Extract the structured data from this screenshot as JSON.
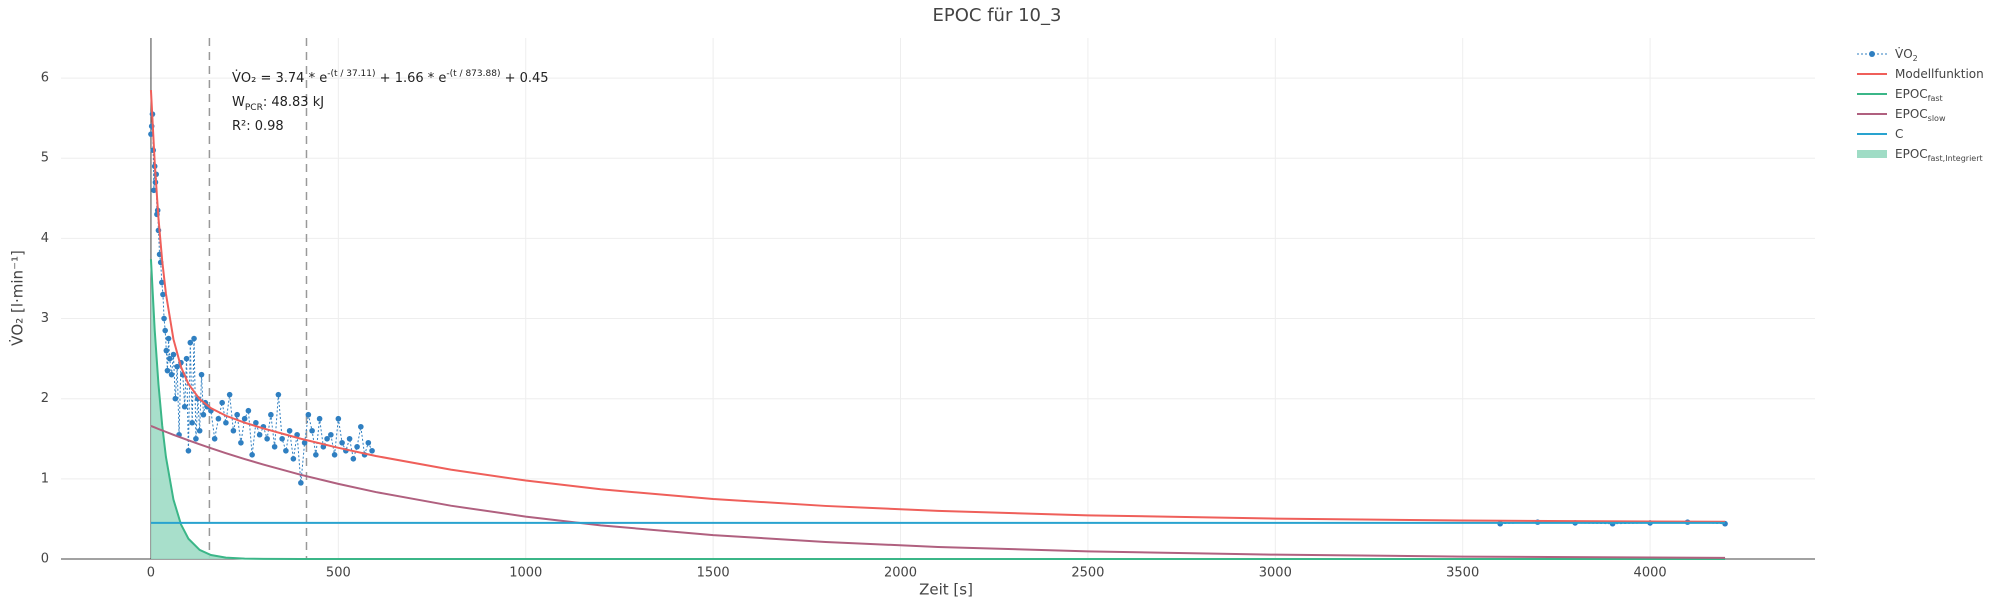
{
  "chart_data": {
    "type": "line",
    "title": "EPOC für 10_3",
    "x_label": "Zeit [s]",
    "y_label": "V̇O₂ [l·min⁻¹]",
    "xlim": [
      -240,
      4440
    ],
    "ylim": [
      0,
      6.5
    ],
    "xticks": [
      0,
      500,
      1000,
      1500,
      2000,
      2500,
      3000,
      3500,
      4000
    ],
    "yticks": [
      0,
      1,
      2,
      3,
      4,
      5,
      6
    ],
    "grid": true,
    "legend": "outside-right",
    "vlines": [
      156,
      415
    ],
    "annotations": [
      [
        {
          "text": "V̇O₂ = 3.74 * e"
        },
        {
          "sup": "-(t / 37.11)"
        },
        {
          "text": " + 1.66 * e"
        },
        {
          "sup": "-(t / 873.88)"
        },
        {
          "text": " + 0.45"
        }
      ],
      [
        {
          "text": "W"
        },
        {
          "sub": "PCR"
        },
        {
          "text": ": 48.83 kJ"
        }
      ],
      [
        {
          "text": "R²: 0.98"
        }
      ]
    ],
    "series": [
      {
        "name": "V̇O",
        "subscript": "2",
        "color": "#2f7fc1",
        "mode": "lines+markers",
        "dash": "dot",
        "x": [
          0,
          2,
          4,
          6,
          8,
          10,
          12,
          14,
          16,
          18,
          20,
          23,
          26,
          29,
          32,
          35,
          38,
          41,
          44,
          47,
          50,
          55,
          60,
          65,
          70,
          75,
          80,
          85,
          90,
          95,
          100,
          105,
          110,
          115,
          120,
          125,
          130,
          135,
          140,
          145,
          150,
          160,
          170,
          180,
          190,
          200,
          210,
          220,
          230,
          240,
          250,
          260,
          270,
          280,
          290,
          300,
          310,
          320,
          330,
          340,
          350,
          360,
          370,
          380,
          390,
          400,
          410,
          420,
          430,
          440,
          450,
          460,
          470,
          480,
          490,
          500,
          510,
          520,
          530,
          540,
          550,
          560,
          570,
          580,
          590,
          2000,
          3600,
          3700,
          3800,
          3900,
          4000,
          4100,
          4200
        ],
        "values": [
          5.3,
          5.4,
          5.55,
          5.1,
          4.6,
          4.9,
          4.7,
          4.8,
          4.3,
          4.35,
          4.1,
          3.8,
          3.7,
          3.45,
          3.3,
          3.0,
          2.85,
          2.6,
          2.35,
          2.75,
          2.5,
          2.3,
          2.55,
          2.0,
          2.4,
          1.55,
          2.45,
          2.3,
          1.9,
          2.5,
          1.35,
          2.7,
          1.7,
          2.75,
          1.5,
          2.0,
          1.6,
          2.3,
          1.8,
          1.95,
          1.9,
          1.85,
          1.5,
          1.75,
          1.95,
          1.7,
          2.05,
          1.6,
          1.8,
          1.45,
          1.75,
          1.85,
          1.3,
          1.7,
          1.55,
          1.65,
          1.5,
          1.8,
          1.4,
          2.05,
          1.5,
          1.35,
          1.6,
          1.25,
          1.55,
          0.95,
          1.45,
          1.8,
          1.6,
          1.3,
          1.75,
          1.4,
          1.5,
          1.55,
          1.3,
          1.75,
          1.45,
          1.35,
          1.5,
          1.25,
          1.4,
          1.65,
          1.3,
          1.45,
          1.35,
          null,
          0.44,
          0.46,
          0.45,
          0.44,
          0.45,
          0.46,
          0.44
        ]
      },
      {
        "name": "Modellfunktion",
        "color": "#ef5f5a",
        "mode": "lines",
        "x": [
          0,
          10,
          20,
          30,
          40,
          60,
          80,
          100,
          130,
          160,
          200,
          250,
          300,
          400,
          500,
          600,
          800,
          1000,
          1200,
          1500,
          1800,
          2100,
          2500,
          3000,
          3500,
          4200
        ],
        "values": [
          5.85,
          4.948,
          4.254,
          3.721,
          3.309,
          2.742,
          2.398,
          2.184,
          1.994,
          1.882,
          1.787,
          1.701,
          1.629,
          1.5,
          1.387,
          1.285,
          1.115,
          0.979,
          0.87,
          0.748,
          0.662,
          0.6,
          0.545,
          0.504,
          0.48,
          0.464
        ]
      },
      {
        "name": "EPOC",
        "subscript": "fast",
        "color": "#3bb688",
        "mode": "lines",
        "x": [
          0,
          10,
          20,
          30,
          40,
          60,
          80,
          100,
          130,
          160,
          200,
          250,
          300,
          400,
          500,
          600,
          800,
          1000,
          1200,
          1500,
          1800,
          2100,
          2500,
          3000,
          3500,
          4200
        ],
        "values": [
          3.74,
          2.857,
          2.182,
          1.667,
          1.273,
          0.742,
          0.433,
          0.253,
          0.113,
          0.05,
          0.017,
          0.004,
          0.001,
          0,
          0,
          0,
          0,
          0,
          0,
          0,
          0,
          0,
          0,
          0,
          0,
          0
        ]
      },
      {
        "name": "EPOC",
        "subscript": "slow",
        "color": "#b0607f",
        "mode": "lines",
        "x": [
          0,
          10,
          20,
          30,
          40,
          60,
          80,
          100,
          130,
          160,
          200,
          250,
          300,
          400,
          500,
          600,
          800,
          1000,
          1200,
          1500,
          1800,
          2100,
          2500,
          3000,
          3500,
          4200
        ],
        "values": [
          1.66,
          1.641,
          1.622,
          1.604,
          1.586,
          1.55,
          1.515,
          1.481,
          1.431,
          1.382,
          1.32,
          1.247,
          1.178,
          1.05,
          0.937,
          0.835,
          0.665,
          0.529,
          0.42,
          0.298,
          0.212,
          0.15,
          0.095,
          0.054,
          0.03,
          0.014
        ]
      },
      {
        "name": "C",
        "color": "#29a3cf",
        "mode": "lines",
        "x": [
          0,
          4200
        ],
        "values": [
          0.45,
          0.45
        ]
      },
      {
        "name": "EPOC",
        "subscript": "fast,Integriert",
        "color": "#9fdcc5",
        "mode": "fill",
        "x": [
          0,
          10,
          20,
          30,
          40,
          60,
          80,
          100,
          130,
          160,
          200,
          250,
          300
        ],
        "values": [
          3.74,
          2.857,
          2.182,
          1.667,
          1.273,
          0.742,
          0.433,
          0.253,
          0.113,
          0.05,
          0.017,
          0.004,
          0.001
        ]
      }
    ]
  }
}
